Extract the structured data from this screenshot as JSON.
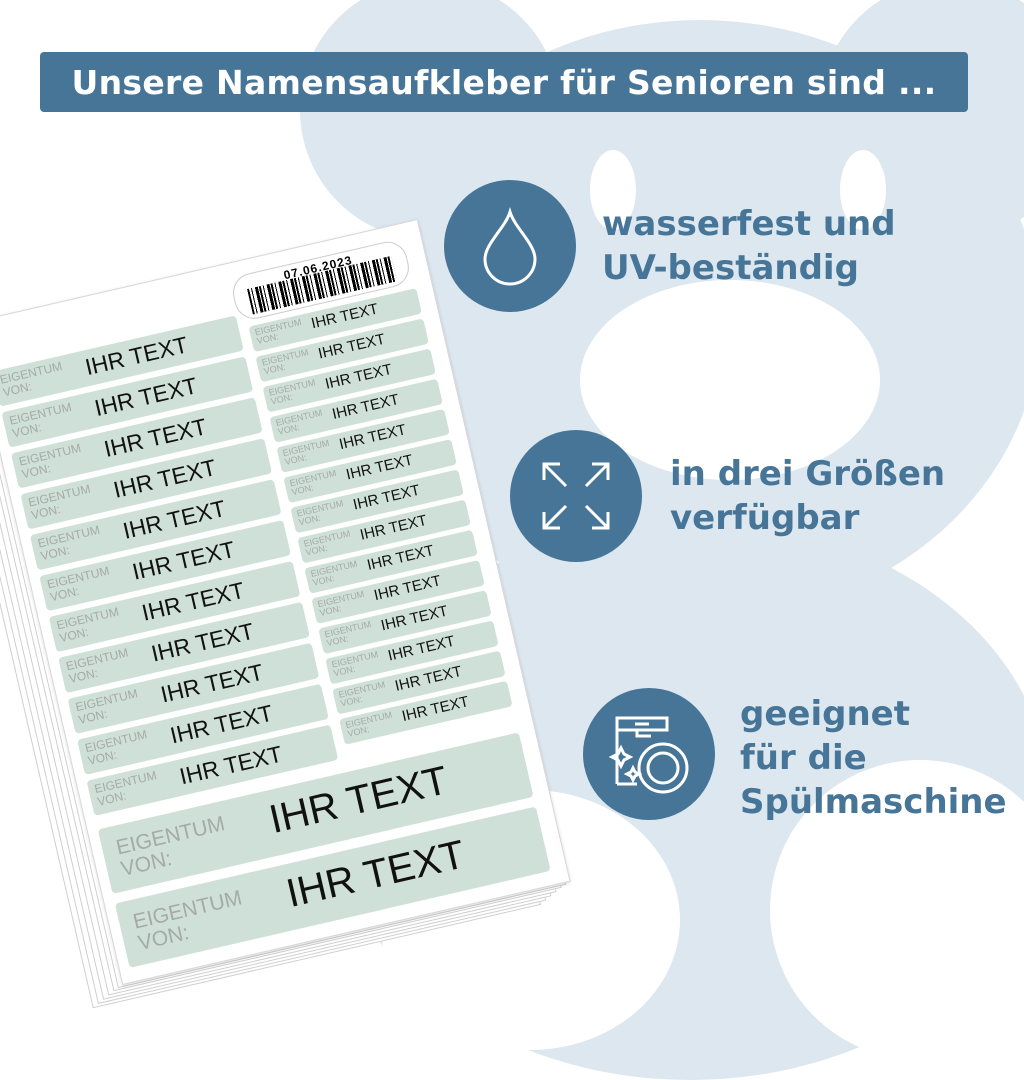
{
  "banner": {
    "title": "Unsere Namensaufkleber für Senioren sind ..."
  },
  "features": [
    {
      "icon": "water-drop-icon",
      "text": "wasserfest und\nUV-beständig"
    },
    {
      "icon": "expand-arrows-icon",
      "text": "in drei Größen\nverfügbar"
    },
    {
      "icon": "dishwasher-icon",
      "text": "geeignet\nfür die\nSpülmaschine"
    }
  ],
  "sheet": {
    "barcode_date": "07.06.2023",
    "owner_label": "EIGENTUM\nVON:",
    "name_text": "IHR TEXT",
    "medium_count": 11,
    "small_count": 14,
    "large_count": 2
  },
  "colors": {
    "brand": "#467598",
    "background_bear": "#dde7ef",
    "label": "#cfe0d8"
  }
}
